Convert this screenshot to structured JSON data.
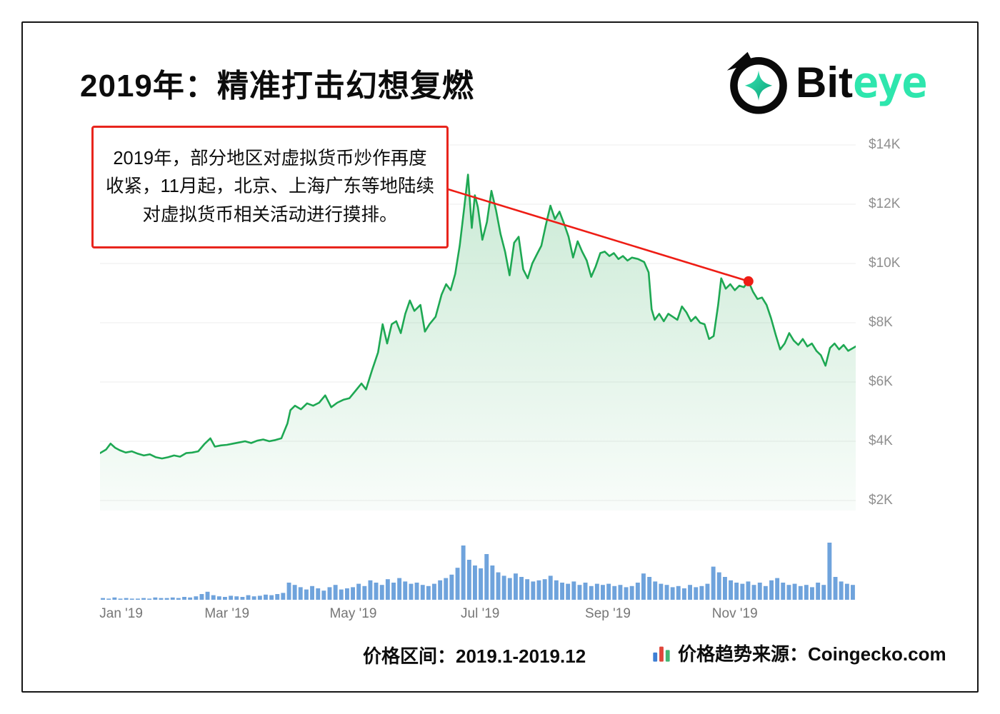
{
  "page": {
    "title": "2019年：精准打击幻想复燃",
    "logo": {
      "text_black": "Bit",
      "text_accent": "eye",
      "accent_color": "#2ee6ad"
    },
    "annotation": {
      "text": "2019年，部分地区对虚拟货币炒作再度收紧，11月起，北京、上海广东等地陆续对虚拟货币相关活动进行摸排。"
    },
    "footer": {
      "range_label": "价格区间：2019.1-2019.12",
      "source_label": "价格趋势来源：Coingecko.com"
    }
  },
  "chart_data": {
    "type": "line",
    "title": "BTC/USD price with trading volume, 2019",
    "legend": "none",
    "grid": "horizontal",
    "x_axis": {
      "unit": "month of 2019",
      "ticks": [
        {
          "label": "Jan '19",
          "position": 0.028
        },
        {
          "label": "Mar '19",
          "position": 0.168
        },
        {
          "label": "May '19",
          "position": 0.335
        },
        {
          "label": "Jul '19",
          "position": 0.503
        },
        {
          "label": "Sep '19",
          "position": 0.672
        },
        {
          "label": "Nov '19",
          "position": 0.84
        }
      ]
    },
    "y_axis": {
      "unit": "USD thousands",
      "range": [
        2,
        14
      ],
      "ticks": [
        {
          "label": "$14K",
          "value": 14
        },
        {
          "label": "$12K",
          "value": 12
        },
        {
          "label": "$10K",
          "value": 10
        },
        {
          "label": "$8K",
          "value": 8
        },
        {
          "label": "$6K",
          "value": 6
        },
        {
          "label": "$4K",
          "value": 4
        },
        {
          "label": "$2K",
          "value": 2
        }
      ]
    },
    "price_series": {
      "name": "BTC price (USD, thousands); x = fraction of year",
      "color": "#1ea853",
      "points": [
        [
          0.0,
          3.6
        ],
        [
          0.008,
          3.72
        ],
        [
          0.014,
          3.92
        ],
        [
          0.02,
          3.78
        ],
        [
          0.026,
          3.7
        ],
        [
          0.034,
          3.62
        ],
        [
          0.042,
          3.66
        ],
        [
          0.05,
          3.58
        ],
        [
          0.058,
          3.52
        ],
        [
          0.066,
          3.56
        ],
        [
          0.074,
          3.46
        ],
        [
          0.082,
          3.42
        ],
        [
          0.09,
          3.46
        ],
        [
          0.098,
          3.52
        ],
        [
          0.106,
          3.48
        ],
        [
          0.114,
          3.6
        ],
        [
          0.122,
          3.62
        ],
        [
          0.13,
          3.66
        ],
        [
          0.138,
          3.9
        ],
        [
          0.146,
          4.1
        ],
        [
          0.152,
          3.82
        ],
        [
          0.16,
          3.86
        ],
        [
          0.168,
          3.88
        ],
        [
          0.176,
          3.92
        ],
        [
          0.184,
          3.96
        ],
        [
          0.192,
          4.0
        ],
        [
          0.2,
          3.94
        ],
        [
          0.208,
          4.02
        ],
        [
          0.216,
          4.06
        ],
        [
          0.224,
          4.0
        ],
        [
          0.232,
          4.04
        ],
        [
          0.24,
          4.1
        ],
        [
          0.248,
          4.6
        ],
        [
          0.252,
          5.05
        ],
        [
          0.258,
          5.2
        ],
        [
          0.266,
          5.08
        ],
        [
          0.274,
          5.28
        ],
        [
          0.282,
          5.2
        ],
        [
          0.29,
          5.3
        ],
        [
          0.298,
          5.55
        ],
        [
          0.306,
          5.15
        ],
        [
          0.314,
          5.3
        ],
        [
          0.322,
          5.4
        ],
        [
          0.33,
          5.45
        ],
        [
          0.338,
          5.7
        ],
        [
          0.346,
          5.95
        ],
        [
          0.352,
          5.75
        ],
        [
          0.36,
          6.4
        ],
        [
          0.368,
          7.0
        ],
        [
          0.374,
          7.95
        ],
        [
          0.38,
          7.3
        ],
        [
          0.386,
          7.95
        ],
        [
          0.392,
          8.05
        ],
        [
          0.398,
          7.65
        ],
        [
          0.404,
          8.3
        ],
        [
          0.41,
          8.75
        ],
        [
          0.416,
          8.4
        ],
        [
          0.424,
          8.6
        ],
        [
          0.43,
          7.7
        ],
        [
          0.436,
          7.95
        ],
        [
          0.444,
          8.2
        ],
        [
          0.452,
          8.95
        ],
        [
          0.458,
          9.3
        ],
        [
          0.464,
          9.1
        ],
        [
          0.47,
          9.65
        ],
        [
          0.476,
          10.6
        ],
        [
          0.482,
          11.9
        ],
        [
          0.487,
          13.0
        ],
        [
          0.492,
          11.2
        ],
        [
          0.496,
          12.3
        ],
        [
          0.5,
          11.9
        ],
        [
          0.506,
          10.8
        ],
        [
          0.512,
          11.4
        ],
        [
          0.518,
          12.45
        ],
        [
          0.524,
          11.8
        ],
        [
          0.53,
          11.0
        ],
        [
          0.536,
          10.4
        ],
        [
          0.542,
          9.6
        ],
        [
          0.548,
          10.7
        ],
        [
          0.554,
          10.9
        ],
        [
          0.56,
          9.8
        ],
        [
          0.566,
          9.5
        ],
        [
          0.572,
          10.0
        ],
        [
          0.578,
          10.3
        ],
        [
          0.584,
          10.6
        ],
        [
          0.59,
          11.3
        ],
        [
          0.596,
          11.95
        ],
        [
          0.602,
          11.5
        ],
        [
          0.608,
          11.75
        ],
        [
          0.614,
          11.35
        ],
        [
          0.62,
          10.9
        ],
        [
          0.626,
          10.2
        ],
        [
          0.632,
          10.75
        ],
        [
          0.638,
          10.4
        ],
        [
          0.644,
          10.1
        ],
        [
          0.65,
          9.55
        ],
        [
          0.656,
          9.9
        ],
        [
          0.662,
          10.35
        ],
        [
          0.668,
          10.4
        ],
        [
          0.674,
          10.25
        ],
        [
          0.68,
          10.35
        ],
        [
          0.686,
          10.15
        ],
        [
          0.692,
          10.25
        ],
        [
          0.698,
          10.1
        ],
        [
          0.704,
          10.2
        ],
        [
          0.712,
          10.15
        ],
        [
          0.72,
          10.05
        ],
        [
          0.726,
          9.7
        ],
        [
          0.73,
          8.45
        ],
        [
          0.734,
          8.1
        ],
        [
          0.74,
          8.3
        ],
        [
          0.746,
          8.05
        ],
        [
          0.752,
          8.3
        ],
        [
          0.758,
          8.2
        ],
        [
          0.764,
          8.1
        ],
        [
          0.77,
          8.55
        ],
        [
          0.776,
          8.35
        ],
        [
          0.782,
          8.05
        ],
        [
          0.788,
          8.2
        ],
        [
          0.794,
          8.0
        ],
        [
          0.8,
          7.95
        ],
        [
          0.806,
          7.45
        ],
        [
          0.812,
          7.55
        ],
        [
          0.818,
          8.6
        ],
        [
          0.822,
          9.5
        ],
        [
          0.828,
          9.15
        ],
        [
          0.834,
          9.3
        ],
        [
          0.84,
          9.1
        ],
        [
          0.846,
          9.25
        ],
        [
          0.852,
          9.2
        ],
        [
          0.858,
          9.4
        ],
        [
          0.864,
          9.05
        ],
        [
          0.87,
          8.8
        ],
        [
          0.876,
          8.85
        ],
        [
          0.882,
          8.6
        ],
        [
          0.888,
          8.15
        ],
        [
          0.894,
          7.6
        ],
        [
          0.9,
          7.1
        ],
        [
          0.906,
          7.3
        ],
        [
          0.912,
          7.65
        ],
        [
          0.918,
          7.4
        ],
        [
          0.924,
          7.25
        ],
        [
          0.93,
          7.45
        ],
        [
          0.936,
          7.2
        ],
        [
          0.942,
          7.3
        ],
        [
          0.948,
          7.05
        ],
        [
          0.954,
          6.9
        ],
        [
          0.96,
          6.55
        ],
        [
          0.966,
          7.15
        ],
        [
          0.972,
          7.3
        ],
        [
          0.978,
          7.1
        ],
        [
          0.984,
          7.25
        ],
        [
          0.99,
          7.05
        ],
        [
          1.0,
          7.2
        ]
      ]
    },
    "volume_series": {
      "name": "Trading volume (relative 0-100)",
      "color": "#6fa3dc",
      "values": [
        3,
        2,
        4,
        2,
        3,
        2,
        2,
        3,
        2,
        4,
        3,
        3,
        4,
        3,
        5,
        4,
        6,
        10,
        14,
        8,
        6,
        5,
        7,
        6,
        5,
        8,
        6,
        7,
        9,
        8,
        10,
        12,
        30,
        26,
        22,
        18,
        24,
        20,
        16,
        22,
        26,
        18,
        20,
        22,
        28,
        24,
        34,
        30,
        26,
        36,
        30,
        38,
        32,
        28,
        30,
        26,
        24,
        28,
        34,
        38,
        44,
        56,
        95,
        70,
        60,
        55,
        80,
        60,
        48,
        42,
        38,
        46,
        40,
        36,
        32,
        34,
        36,
        42,
        34,
        30,
        28,
        32,
        26,
        30,
        24,
        28,
        26,
        28,
        24,
        26,
        22,
        24,
        30,
        46,
        40,
        32,
        28,
        26,
        22,
        24,
        20,
        26,
        22,
        24,
        28,
        58,
        48,
        40,
        34,
        30,
        28,
        32,
        26,
        30,
        24,
        34,
        38,
        30,
        26,
        28,
        24,
        26,
        22,
        30,
        26,
        100,
        40,
        32,
        28,
        26
      ]
    },
    "annotation_marker": {
      "x": 0.858,
      "value_k": 9.4,
      "color": "#ee1d15"
    }
  }
}
